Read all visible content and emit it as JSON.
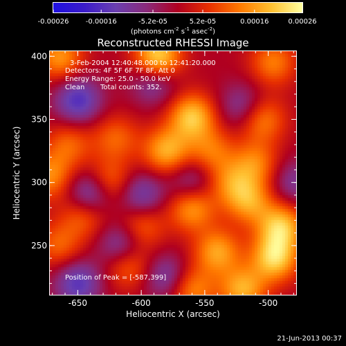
{
  "colorbar": {
    "ticks": [
      "-0.00026",
      "-0.00016",
      "-5.2e-05",
      "5.2e-05",
      "0.00016",
      "0.00026"
    ],
    "tick_values": [
      -0.00026,
      -0.00016,
      -5.2e-05,
      5.2e-05,
      0.00016,
      0.00026
    ],
    "range": [
      -0.00026,
      0.00026
    ],
    "unit_label_parts": [
      "(photons cm",
      "-2",
      " s",
      "-1",
      " asec",
      "-2",
      ")"
    ],
    "colors": [
      "#1f10e0",
      "#3b1cc9",
      "#6a3fb0",
      "#8a2a7a",
      "#b00020",
      "#e83000",
      "#ff7a00",
      "#ffc030",
      "#ffffa0"
    ]
  },
  "title": "Reconstructed RHESSI Image",
  "annotations": {
    "time_range": "3-Feb-2004 12:40:48.000 to 12:41:20.000",
    "detectors": "Detectors: 4F 5F 6F 7F 8F, Att 0",
    "energy_range": "Energy Range: 25.0 - 50.0 keV",
    "clean_label": "Clean",
    "total_counts": "Total counts: 352.",
    "peak_position": "Position of Peak = [-587,399]"
  },
  "footer": {
    "timestamp": "21-Jun-2013 00:37"
  },
  "chart_data": {
    "type": "heatmap",
    "title": "Reconstructed RHESSI Image",
    "xlabel": "Heliocentric X (arcsec)",
    "ylabel": "Heliocentric Y (arcsec)",
    "xlim": [
      -672,
      -478
    ],
    "ylim": [
      211,
      404
    ],
    "x_ticks": [
      -650,
      -600,
      -550,
      -500
    ],
    "y_ticks": [
      250,
      300,
      350,
      400
    ],
    "colorbar_range": [
      -0.00026,
      0.00026
    ],
    "peak": [
      -587,
      399
    ],
    "blobs": [
      {
        "x": -587,
        "y": 399,
        "v": 1.0
      },
      {
        "x": -664,
        "y": 399,
        "v": 0.65
      },
      {
        "x": -560,
        "y": 352,
        "v": 0.85
      },
      {
        "x": -496,
        "y": 395,
        "v": 0.55
      },
      {
        "x": -505,
        "y": 350,
        "v": 0.6
      },
      {
        "x": -620,
        "y": 335,
        "v": 0.45
      },
      {
        "x": -657,
        "y": 330,
        "v": 0.45
      },
      {
        "x": -580,
        "y": 325,
        "v": 0.75
      },
      {
        "x": -545,
        "y": 325,
        "v": 0.5
      },
      {
        "x": -510,
        "y": 315,
        "v": 0.55
      },
      {
        "x": -672,
        "y": 305,
        "v": 0.6
      },
      {
        "x": -625,
        "y": 300,
        "v": 0.55
      },
      {
        "x": -530,
        "y": 300,
        "v": 0.5
      },
      {
        "x": -645,
        "y": 275,
        "v": 0.55
      },
      {
        "x": -560,
        "y": 280,
        "v": 0.7
      },
      {
        "x": -600,
        "y": 265,
        "v": 0.5
      },
      {
        "x": -665,
        "y": 250,
        "v": 0.45
      },
      {
        "x": -515,
        "y": 285,
        "v": 0.65
      },
      {
        "x": -490,
        "y": 265,
        "v": 0.85
      },
      {
        "x": -495,
        "y": 240,
        "v": 0.9
      },
      {
        "x": -540,
        "y": 245,
        "v": 0.7
      },
      {
        "x": -610,
        "y": 235,
        "v": 0.55
      },
      {
        "x": -520,
        "y": 215,
        "v": 0.75
      },
      {
        "x": -560,
        "y": 215,
        "v": 0.6
      },
      {
        "x": -650,
        "y": 365,
        "v": -0.7
      },
      {
        "x": -640,
        "y": 290,
        "v": -0.75
      },
      {
        "x": -600,
        "y": 290,
        "v": -0.55
      },
      {
        "x": -615,
        "y": 250,
        "v": -0.6
      },
      {
        "x": -650,
        "y": 220,
        "v": -0.65
      },
      {
        "x": -590,
        "y": 380,
        "v": -0.5
      },
      {
        "x": -560,
        "y": 300,
        "v": -0.45
      },
      {
        "x": -520,
        "y": 360,
        "v": -0.45
      },
      {
        "x": -480,
        "y": 300,
        "v": -0.4
      },
      {
        "x": -580,
        "y": 225,
        "v": -0.5
      }
    ]
  }
}
